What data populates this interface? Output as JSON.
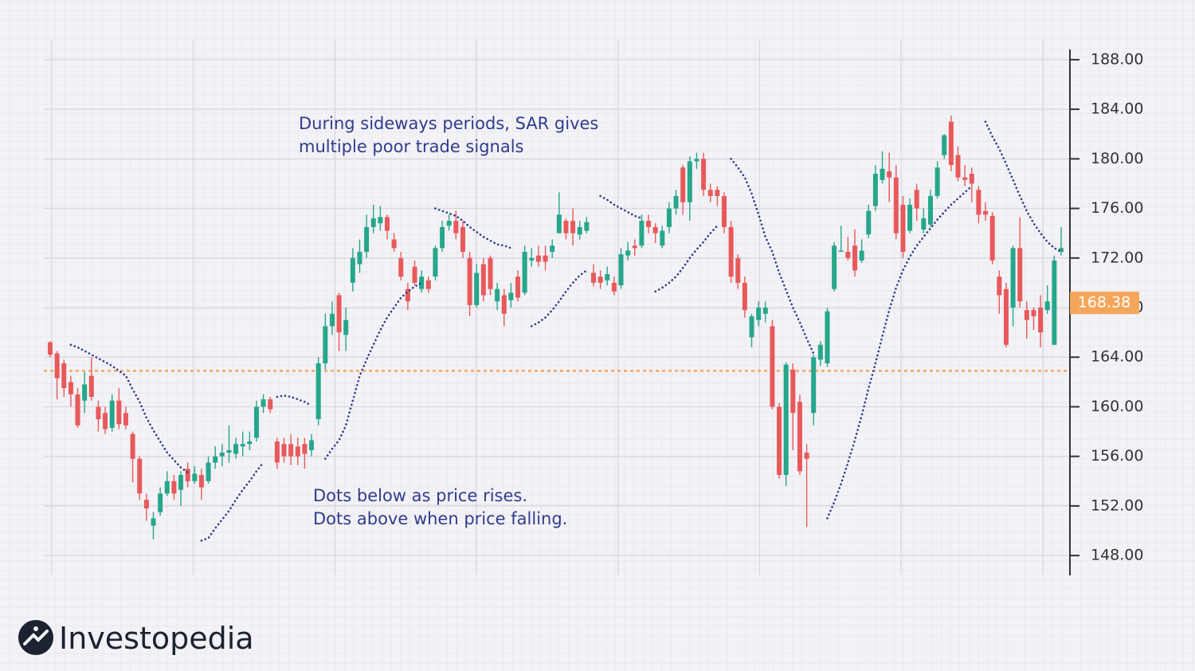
{
  "chart_data": {
    "type": "candlestick",
    "up_color": "#26a68b",
    "down_color": "#e8595b",
    "ylim": [
      146.4,
      189.6
    ],
    "yticks": [
      {
        "value": 188,
        "label": "188.00"
      },
      {
        "value": 184,
        "label": "184.00"
      },
      {
        "value": 180,
        "label": "180.00"
      },
      {
        "value": 176,
        "label": "176.00"
      },
      {
        "value": 172,
        "label": "172.00"
      },
      {
        "value": 168,
        "label": "168.00"
      },
      {
        "value": 164,
        "label": "164.00"
      },
      {
        "value": 160,
        "label": "160.00"
      },
      {
        "value": 156,
        "label": "156.00"
      },
      {
        "value": 152,
        "label": "152.00"
      },
      {
        "value": 148,
        "label": "148.00"
      }
    ],
    "grid": true,
    "ohlc": [
      [
        165.2,
        165.3,
        164.0,
        164.2
      ],
      [
        164.3,
        164.5,
        160.6,
        162.3
      ],
      [
        163.5,
        163.8,
        160.8,
        161.5
      ],
      [
        162.0,
        162.5,
        160.0,
        161.0
      ],
      [
        161.0,
        161.5,
        158.3,
        158.5
      ],
      [
        160.5,
        162.8,
        159.5,
        161.8
      ],
      [
        162.5,
        164.0,
        160.5,
        160.8
      ],
      [
        160.0,
        160.5,
        158.0,
        159.0
      ],
      [
        159.5,
        160.0,
        157.8,
        158.2
      ],
      [
        158.3,
        161.0,
        158.0,
        160.5
      ],
      [
        160.5,
        161.5,
        158.2,
        158.6
      ],
      [
        159.5,
        160.0,
        158.2,
        158.5
      ],
      [
        157.8,
        158.0,
        153.9,
        155.8
      ],
      [
        155.8,
        156.0,
        152.5,
        153.0
      ],
      [
        152.5,
        153.0,
        150.8,
        151.8
      ],
      [
        150.4,
        151.5,
        149.3,
        151.0
      ],
      [
        151.5,
        153.5,
        151.2,
        153.0
      ],
      [
        153.0,
        154.8,
        152.8,
        154.0
      ],
      [
        154.0,
        154.5,
        152.5,
        153.0
      ],
      [
        153.3,
        154.8,
        152.0,
        154.5
      ],
      [
        155.0,
        155.5,
        153.5,
        154.0
      ],
      [
        154.0,
        155.2,
        153.8,
        154.6
      ],
      [
        154.5,
        155.0,
        152.5,
        153.5
      ],
      [
        154.0,
        156.0,
        153.8,
        155.5
      ],
      [
        155.5,
        156.8,
        155.0,
        156.0
      ],
      [
        156.0,
        157.0,
        155.2,
        156.3
      ],
      [
        156.3,
        158.5,
        155.5,
        156.5
      ],
      [
        156.2,
        157.5,
        155.8,
        157.0
      ],
      [
        156.8,
        158.0,
        156.0,
        157.0
      ],
      [
        157.0,
        158.0,
        156.5,
        157.2
      ],
      [
        157.5,
        160.5,
        157.2,
        160.0
      ],
      [
        160.0,
        161.0,
        159.5,
        160.6
      ],
      [
        160.6,
        160.8,
        159.5,
        159.8
      ],
      [
        157.2,
        157.5,
        155.0,
        155.5
      ],
      [
        157.0,
        157.5,
        155.5,
        156.0
      ],
      [
        157.0,
        157.8,
        155.3,
        156.0
      ],
      [
        156.8,
        157.5,
        155.3,
        156.0
      ],
      [
        157.0,
        157.5,
        155.0,
        156.2
      ],
      [
        156.5,
        157.8,
        156.0,
        157.3
      ],
      [
        159.0,
        164.0,
        158.5,
        163.5
      ],
      [
        163.5,
        167.5,
        163.0,
        166.5
      ],
      [
        166.5,
        168.5,
        165.8,
        167.5
      ],
      [
        169.0,
        169.2,
        164.5,
        166.0
      ],
      [
        165.8,
        168.0,
        164.5,
        167.0
      ],
      [
        170.0,
        172.8,
        169.3,
        172.0
      ],
      [
        171.5,
        173.5,
        170.8,
        172.5
      ],
      [
        172.5,
        175.5,
        172.0,
        174.5
      ],
      [
        174.5,
        176.3,
        174.0,
        175.2
      ],
      [
        174.8,
        176.2,
        174.2,
        175.3
      ],
      [
        175.3,
        175.5,
        173.5,
        174.2
      ],
      [
        173.5,
        174.0,
        172.5,
        172.8
      ],
      [
        172.0,
        172.5,
        170.2,
        170.5
      ],
      [
        169.5,
        170.0,
        167.8,
        168.5
      ],
      [
        171.3,
        171.8,
        169.8,
        170.0
      ],
      [
        169.5,
        171.0,
        169.2,
        170.5
      ],
      [
        170.2,
        170.5,
        169.2,
        169.5
      ],
      [
        170.5,
        173.0,
        170.2,
        172.8
      ],
      [
        172.8,
        175.0,
        172.5,
        174.5
      ],
      [
        174.6,
        175.5,
        174.2,
        175.0
      ],
      [
        175.0,
        175.8,
        173.5,
        174.0
      ],
      [
        174.5,
        175.0,
        172.0,
        172.5
      ],
      [
        172.0,
        172.5,
        167.3,
        168.2
      ],
      [
        168.2,
        171.5,
        168.0,
        170.8
      ],
      [
        171.5,
        172.0,
        168.5,
        169.0
      ],
      [
        172.0,
        172.2,
        169.0,
        169.5
      ],
      [
        168.5,
        170.0,
        167.8,
        169.5
      ],
      [
        169.0,
        169.5,
        166.5,
        167.5
      ],
      [
        168.6,
        170.0,
        168.0,
        169.2
      ],
      [
        170.5,
        171.0,
        168.5,
        168.8
      ],
      [
        169.2,
        173.0,
        169.0,
        172.5
      ],
      [
        171.8,
        172.8,
        171.3,
        172.0
      ],
      [
        172.2,
        173.0,
        171.3,
        171.7
      ],
      [
        172.2,
        173.0,
        171.0,
        171.7
      ],
      [
        172.5,
        173.5,
        172.0,
        173.0
      ],
      [
        174.0,
        177.3,
        174.0,
        175.5
      ],
      [
        175.0,
        175.2,
        173.5,
        174.0
      ],
      [
        175.0,
        176.0,
        173.0,
        174.0
      ],
      [
        173.9,
        175.0,
        173.5,
        174.5
      ],
      [
        174.2,
        175.3,
        174.0,
        174.9
      ],
      [
        170.8,
        171.5,
        169.7,
        170.0
      ],
      [
        170.5,
        171.0,
        169.5,
        170.0
      ],
      [
        170.2,
        171.3,
        169.8,
        170.7
      ],
      [
        170.0,
        170.5,
        169.0,
        169.3
      ],
      [
        169.8,
        172.8,
        169.5,
        172.3
      ],
      [
        172.2,
        173.3,
        171.8,
        172.6
      ],
      [
        173.0,
        173.5,
        172.2,
        172.8
      ],
      [
        173.0,
        175.5,
        172.8,
        175.0
      ],
      [
        175.0,
        175.5,
        174.0,
        174.5
      ],
      [
        174.5,
        174.8,
        173.2,
        174.0
      ],
      [
        173.0,
        174.6,
        172.8,
        174.2
      ],
      [
        174.5,
        176.5,
        174.0,
        176.0
      ],
      [
        176.0,
        177.5,
        175.5,
        177.0
      ],
      [
        179.3,
        179.5,
        175.5,
        176.5
      ],
      [
        176.5,
        180.2,
        175.0,
        179.8
      ],
      [
        179.8,
        180.5,
        179.2,
        180.0
      ],
      [
        180.0,
        180.5,
        177.0,
        177.5
      ],
      [
        177.5,
        178.0,
        176.5,
        177.0
      ],
      [
        177.5,
        177.8,
        176.2,
        177.0
      ],
      [
        177.0,
        177.3,
        174.0,
        174.5
      ],
      [
        174.5,
        175.0,
        170.0,
        170.5
      ],
      [
        172.0,
        172.3,
        169.5,
        170.0
      ],
      [
        170.0,
        170.5,
        167.2,
        167.8
      ],
      [
        165.6,
        167.5,
        164.8,
        167.3
      ],
      [
        167.0,
        168.5,
        166.5,
        168.0
      ],
      [
        167.5,
        168.5,
        166.8,
        168.0
      ],
      [
        166.5,
        167.0,
        159.8,
        160.0
      ],
      [
        160.0,
        160.3,
        154.2,
        154.5
      ],
      [
        154.5,
        163.6,
        153.6,
        163.4
      ],
      [
        163.0,
        163.5,
        156.5,
        159.5
      ],
      [
        160.4,
        161.0,
        154.5,
        154.8
      ],
      [
        156.3,
        157.0,
        150.3,
        155.8
      ],
      [
        159.5,
        164.2,
        158.5,
        164.0
      ],
      [
        163.8,
        165.3,
        163.3,
        165.0
      ],
      [
        163.5,
        168.0,
        163.2,
        167.7
      ],
      [
        169.5,
        173.3,
        169.3,
        173.0
      ],
      [
        172.5,
        174.6,
        172.5,
        172.6
      ],
      [
        172.5,
        173.7,
        171.8,
        172.0
      ],
      [
        173.0,
        174.3,
        170.5,
        171.0
      ],
      [
        171.8,
        173.5,
        171.6,
        172.6
      ],
      [
        173.9,
        176.3,
        173.6,
        175.8
      ],
      [
        176.2,
        179.5,
        175.8,
        178.8
      ],
      [
        178.3,
        180.6,
        178.0,
        179.2
      ],
      [
        179.0,
        180.5,
        176.5,
        178.5
      ],
      [
        178.5,
        179.5,
        173.5,
        174.0
      ],
      [
        176.3,
        177.0,
        172.0,
        172.5
      ],
      [
        174.2,
        176.8,
        174.0,
        176.3
      ],
      [
        177.5,
        178.0,
        175.0,
        176.0
      ],
      [
        174.3,
        176.0,
        174.0,
        175.2
      ],
      [
        174.7,
        177.5,
        174.5,
        177.0
      ],
      [
        177.0,
        179.8,
        176.8,
        179.3
      ],
      [
        180.3,
        182.0,
        180.0,
        181.9
      ],
      [
        183.0,
        183.5,
        179.0,
        179.5
      ],
      [
        180.3,
        181.0,
        178.2,
        178.5
      ],
      [
        178.5,
        179.5,
        177.8,
        178.3
      ],
      [
        178.8,
        179.3,
        176.5,
        178.0
      ],
      [
        177.5,
        177.8,
        174.8,
        175.5
      ],
      [
        175.8,
        176.5,
        175.0,
        175.5
      ],
      [
        175.4,
        175.7,
        171.5,
        171.8
      ],
      [
        170.5,
        171.0,
        167.5,
        169.0
      ],
      [
        169.5,
        170.0,
        164.8,
        165.0
      ],
      [
        168.0,
        173.0,
        166.5,
        172.8
      ],
      [
        172.8,
        175.3,
        168.0,
        168.5
      ],
      [
        167.8,
        168.5,
        165.5,
        167.0
      ],
      [
        167.8,
        168.0,
        166.2,
        167.3
      ],
      [
        168.0,
        169.0,
        164.8,
        166.0
      ],
      [
        167.8,
        169.8,
        167.5,
        168.5
      ],
      [
        165.0,
        172.2,
        165.0,
        171.8
      ],
      [
        172.5,
        174.5,
        172.2,
        172.8
      ]
    ],
    "sar_color": "#2f3c8c",
    "sar_values": [
      null,
      null,
      null,
      165.0,
      164.8,
      164.5,
      164.2,
      163.9,
      163.6,
      163.3,
      162.9,
      162.5,
      161.4,
      160.4,
      159.1,
      158.1,
      157.2,
      156.3,
      155.7,
      155.1,
      154.7,
      null,
      149.2,
      149.4,
      150.2,
      150.9,
      151.6,
      152.5,
      153.3,
      154.0,
      154.8,
      155.5,
      null,
      160.8,
      160.9,
      160.8,
      160.6,
      160.4,
      160.1,
      null,
      155.8,
      156.6,
      157.3,
      158.5,
      160.5,
      162.5,
      163.8,
      165.0,
      166.2,
      167.2,
      168.0,
      168.8,
      169.3,
      169.7,
      170.0,
      null,
      176.0,
      175.8,
      175.6,
      175.4,
      175.0,
      174.5,
      174.1,
      173.7,
      173.4,
      173.1,
      173.0,
      172.8,
      null,
      null,
      166.5,
      166.8,
      167.2,
      167.8,
      168.5,
      169.3,
      170.0,
      170.6,
      171.0,
      null,
      177.0,
      176.7,
      176.3,
      176.0,
      175.7,
      175.4,
      175.2,
      null,
      169.3,
      169.6,
      170.0,
      170.5,
      171.2,
      172.0,
      172.7,
      173.3,
      174.0,
      174.6,
      null,
      180.0,
      179.3,
      178.5,
      177.2,
      175.5,
      173.7,
      172.5,
      170.8,
      169.4,
      168.0,
      166.8,
      165.5,
      164.3,
      null,
      151.0,
      152.3,
      153.8,
      155.5,
      157.3,
      159.3,
      161.5,
      163.5,
      165.7,
      167.8,
      169.6,
      171.0,
      172.1,
      173.0,
      173.7,
      174.4,
      175.1,
      175.7,
      176.3,
      176.8,
      177.3,
      177.8,
      null,
      183.0,
      181.8,
      180.8,
      179.6,
      178.3,
      177.0,
      175.8,
      174.8,
      174.0,
      173.3,
      172.8,
      172.5
    ],
    "reference_line": {
      "value": 162.9,
      "color": "#f5a65b"
    },
    "last_price": 168.38,
    "last_price_color": "#f5a65b",
    "annotations": [
      {
        "lines": [
          "During sideways periods, SAR gives",
          "multiple poor trade signals"
        ]
      },
      {
        "lines": [
          "Dots below as price rises.",
          "Dots above when price falling."
        ]
      }
    ],
    "brand": "Investopedia"
  }
}
